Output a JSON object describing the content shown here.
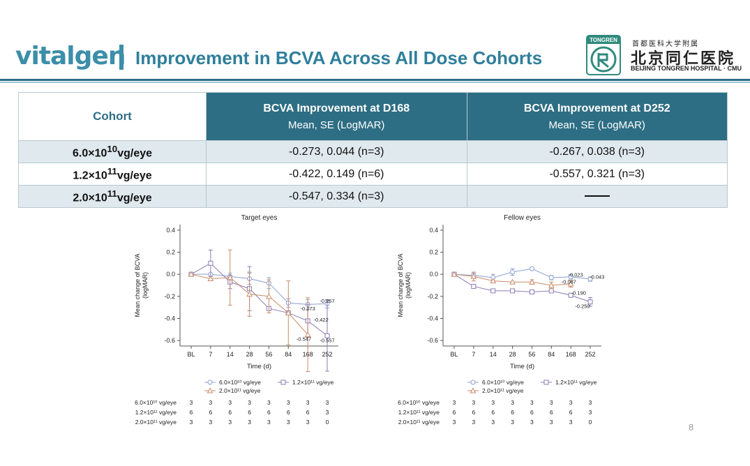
{
  "header": {
    "logo_text": "vitalgen",
    "title": "Improvement in BCVA Across All Dose Cohorts",
    "partner_seal_label": "TONGREN",
    "partner_cn_small": "首都医科大学附属",
    "partner_cn_big": "北京同仁医院",
    "partner_en": "BEIJING TONGREN HOSPITAL · CMU"
  },
  "table": {
    "col_cohort": "Cohort",
    "col_d168_title": "BCVA Improvement at D168",
    "col_d168_sub": "Mean, SE (LogMAR)",
    "col_d252_title": "BCVA Improvement at D252",
    "col_d252_sub": "Mean, SE (LogMAR)",
    "rows": [
      {
        "coef": "6.0×10",
        "exp": "10",
        "unit": "vg/eye",
        "d168": "-0.273, 0.044 (n=3)",
        "d252": "-0.267, 0.038 (n=3)"
      },
      {
        "coef": "1.2×10",
        "exp": "11",
        "unit": "vg/eye",
        "d168": "-0.422, 0.149 (n=6)",
        "d252": "-0.557, 0.321 (n=3)"
      },
      {
        "coef": "2.0×10",
        "exp": "11",
        "unit": "vg/eye",
        "d168": "-0.547, 0.334 (n=3)",
        "d252": ""
      }
    ]
  },
  "colors": {
    "blue": "#8c9fd0",
    "purple": "#8b7bb4",
    "orange": "#c98a68",
    "header_dark": "#2e6e84",
    "accent": "#3c8ea9"
  },
  "chart_data": [
    {
      "type": "line",
      "title": "Target eyes",
      "xlabel": "Time (d)",
      "ylabel": "Mean change of BCVA (logMAR)",
      "ylabel_lines": [
        "Mean change of BCVA",
        "(logMAR)"
      ],
      "categories": [
        "BL",
        "7",
        "14",
        "28",
        "56",
        "84",
        "168",
        "252"
      ],
      "ylim": [
        -0.65,
        0.45
      ],
      "yticks": [
        0.4,
        0.2,
        0.0,
        -0.2,
        -0.4,
        -0.6
      ],
      "ytick_labels": [
        "0.4",
        "0.2",
        "0.0",
        "-0.2",
        "-0.4",
        "-0.6"
      ],
      "series": [
        {
          "name": "6.0×10¹⁰ vg/eye",
          "marker": "circle",
          "color_key": "blue",
          "values": [
            0.0,
            0.0,
            -0.02,
            -0.04,
            -0.08,
            -0.26,
            -0.273,
            -0.267
          ],
          "err": [
            0,
            0,
            0.03,
            0.05,
            0.05,
            0.04,
            0.044,
            0.038
          ]
        },
        {
          "name": "1.2×10¹¹ vg/eye",
          "marker": "square",
          "color_key": "purple",
          "values": [
            0.0,
            0.1,
            -0.07,
            -0.13,
            -0.31,
            -0.35,
            -0.422,
            -0.557
          ],
          "err": [
            0,
            0.12,
            0.06,
            0.2,
            0.0,
            0.0,
            0.149,
            0.321
          ]
        },
        {
          "name": "2.0×10¹¹ vg/eye",
          "marker": "triangle",
          "color_key": "orange",
          "values": [
            0.0,
            -0.04,
            -0.03,
            -0.18,
            -0.2,
            -0.35,
            -0.547,
            null
          ],
          "err": [
            0,
            0,
            0.25,
            0.2,
            0.15,
            0.29,
            0.334,
            0
          ]
        }
      ],
      "annotations": [
        {
          "text": "-0.267",
          "x_index": 7,
          "y": -0.24,
          "anchor": "middle"
        },
        {
          "text": "-0.273",
          "x_index": 6,
          "y": -0.31,
          "anchor": "middle"
        },
        {
          "text": "-0.422",
          "x_index": 6.3,
          "y": -0.41,
          "anchor": "start"
        },
        {
          "text": "-0.547",
          "x_index": 5.8,
          "y": -0.585,
          "anchor": "middle"
        },
        {
          "text": "-0.557",
          "x_index": 7,
          "y": -0.595,
          "anchor": "middle"
        }
      ],
      "legend_row1": [
        "6.0×10¹⁰ vg/eye",
        "1.2×10¹¹ vg/eye"
      ],
      "legend_row2": [
        "2.0×10¹¹ vg/eye"
      ],
      "n_table": [
        {
          "label": "6.0×10¹⁰ vg/eye",
          "counts": [
            "3",
            "3",
            "3",
            "3",
            "3",
            "3",
            "3",
            "3"
          ]
        },
        {
          "label": "1.2×10¹¹ vg/eye",
          "counts": [
            "6",
            "6",
            "6",
            "6",
            "6",
            "6",
            "6",
            "3"
          ]
        },
        {
          "label": "2.0×10¹¹ vg/eye",
          "counts": [
            "3",
            "3",
            "3",
            "3",
            "3",
            "3",
            "3",
            "0"
          ]
        }
      ]
    },
    {
      "type": "line",
      "title": "Fellow eyes",
      "xlabel": "Time (d)",
      "ylabel": "Mean change of BCVA (logMAR)",
      "ylabel_lines": [
        "Mean change of BCVA",
        "(logMAR)"
      ],
      "categories": [
        "BL",
        "7",
        "14",
        "28",
        "56",
        "84",
        "168",
        "252"
      ],
      "ylim": [
        -0.65,
        0.45
      ],
      "yticks": [
        0.4,
        0.2,
        0.0,
        -0.2,
        -0.4,
        -0.6
      ],
      "ytick_labels": [
        "0.4",
        "0.2",
        "0.0",
        "-0.2",
        "-0.4",
        "-0.6"
      ],
      "series": [
        {
          "name": "6.0×10¹⁰ vg/eye",
          "marker": "circle",
          "color_key": "blue",
          "values": [
            0.0,
            -0.01,
            -0.03,
            0.02,
            0.05,
            -0.03,
            -0.023,
            -0.043
          ],
          "err": [
            0,
            0.02,
            0.03,
            0.03,
            0.0,
            0.02,
            0.02,
            0.02
          ]
        },
        {
          "name": "1.2×10¹¹ vg/eye",
          "marker": "square",
          "color_key": "purple",
          "values": [
            0.0,
            -0.11,
            -0.15,
            -0.15,
            -0.16,
            -0.15,
            -0.19,
            -0.25
          ],
          "err": [
            0,
            0,
            0,
            0,
            0,
            0,
            0,
            0.04
          ]
        },
        {
          "name": "2.0×10¹¹ vg/eye",
          "marker": "triangle",
          "color_key": "orange",
          "values": [
            0.0,
            -0.02,
            -0.06,
            -0.07,
            -0.07,
            -0.1,
            -0.087,
            null
          ],
          "err": [
            0,
            0.04,
            0,
            0,
            0.02,
            0.03,
            0.03,
            0
          ]
        }
      ],
      "annotations": [
        {
          "text": "-0.023",
          "x_index": 6.25,
          "y": -0.003,
          "anchor": "middle"
        },
        {
          "text": "-0.043",
          "x_index": 7.35,
          "y": -0.02,
          "anchor": "middle"
        },
        {
          "text": "-0.087",
          "x_index": 5.9,
          "y": -0.065,
          "anchor": "middle"
        },
        {
          "text": "-0.190",
          "x_index": 6.4,
          "y": -0.165,
          "anchor": "middle"
        },
        {
          "text": "-0.250",
          "x_index": 6.6,
          "y": -0.285,
          "anchor": "middle"
        }
      ],
      "legend_row1": [
        "6.0×10¹⁰ vg/eye",
        "1.2×10¹¹ vg/eye"
      ],
      "legend_row2": [
        "2.0×10¹¹ vg/eye"
      ],
      "n_table": [
        {
          "label": "6.0×10¹⁰ vg/eye",
          "counts": [
            "3",
            "3",
            "3",
            "3",
            "3",
            "3",
            "3",
            "3"
          ]
        },
        {
          "label": "1.2×10¹¹ vg/eye",
          "counts": [
            "6",
            "6",
            "6",
            "6",
            "6",
            "6",
            "6",
            "3"
          ]
        },
        {
          "label": "2.0×10¹¹ vg/eye",
          "counts": [
            "3",
            "3",
            "3",
            "3",
            "3",
            "3",
            "3",
            "0"
          ]
        }
      ]
    }
  ],
  "page_number": "8"
}
